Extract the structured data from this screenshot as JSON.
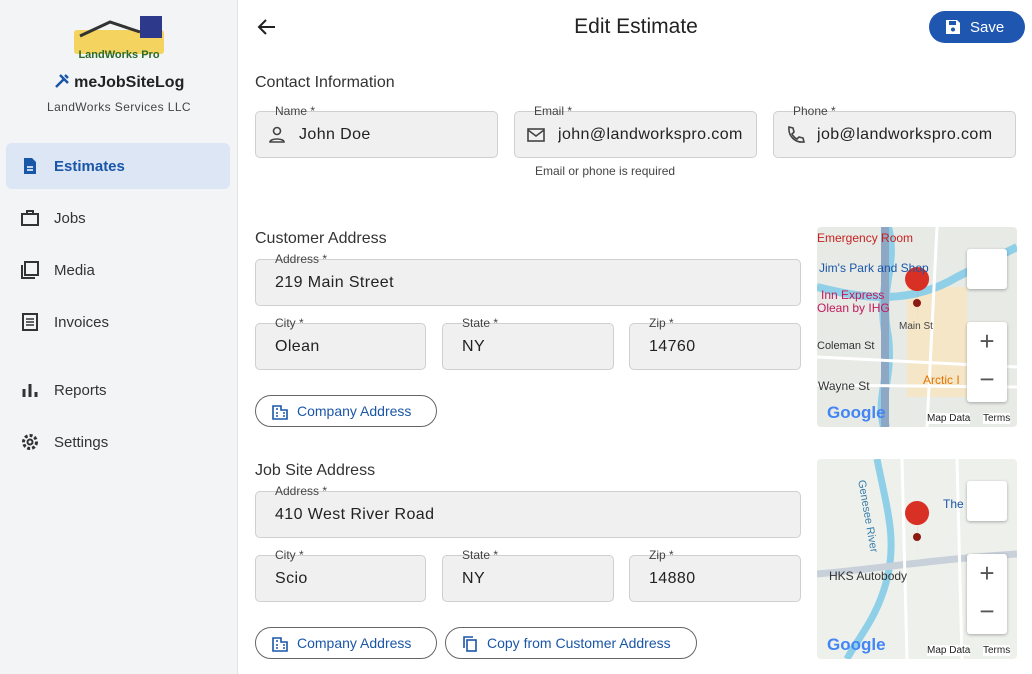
{
  "sidebar": {
    "logo_text": "LandWorks Pro",
    "app_name": "meJobSiteLog",
    "company": "LandWorks Services LLC",
    "nav": [
      "Estimates",
      "Jobs",
      "Media",
      "Invoices",
      "Reports",
      "Settings"
    ]
  },
  "header": {
    "title": "Edit Estimate",
    "save": "Save"
  },
  "contact": {
    "title": "Contact Information",
    "fields": [
      {
        "label": "Name *",
        "value": "John Doe"
      },
      {
        "label": "Email *",
        "value": "john@landworkspro.com"
      },
      {
        "label": "Phone *",
        "value": "job@landworkspro.com"
      }
    ],
    "helper": "Email or phone is required"
  },
  "customer_address": {
    "title": "Customer Address",
    "fields": [
      {
        "label": "Address *",
        "value": "219 Main Street"
      },
      {
        "label": "City *",
        "value": "Olean"
      },
      {
        "label": "State *",
        "value": "NY"
      },
      {
        "label": "Zip *",
        "value": "14760"
      }
    ],
    "button": "Company Address"
  },
  "job_site_address": {
    "title": "Job Site Address",
    "fields": [
      {
        "label": "Address *",
        "value": "410 West River Road"
      },
      {
        "label": "City *",
        "value": "Scio"
      },
      {
        "label": "State *",
        "value": "NY"
      },
      {
        "label": "Zip *",
        "value": "14880"
      }
    ],
    "buttons": [
      "Company Address",
      "Copy from Customer Address"
    ]
  },
  "maps": [
    {
      "labels": [
        "Emergency Room",
        "Jim's Park and Shop",
        "Inn Express",
        "Olean by IHG",
        "Main St",
        "Coleman St",
        "Wayne St",
        "Arctic I"
      ],
      "logo": "Google",
      "map_data": "Map Data",
      "terms": "Terms"
    },
    {
      "labels": [
        "Genesee River",
        "The",
        "HKS Autobody"
      ],
      "logo": "Google",
      "map_data": "Map Data",
      "terms": "Terms"
    }
  ]
}
